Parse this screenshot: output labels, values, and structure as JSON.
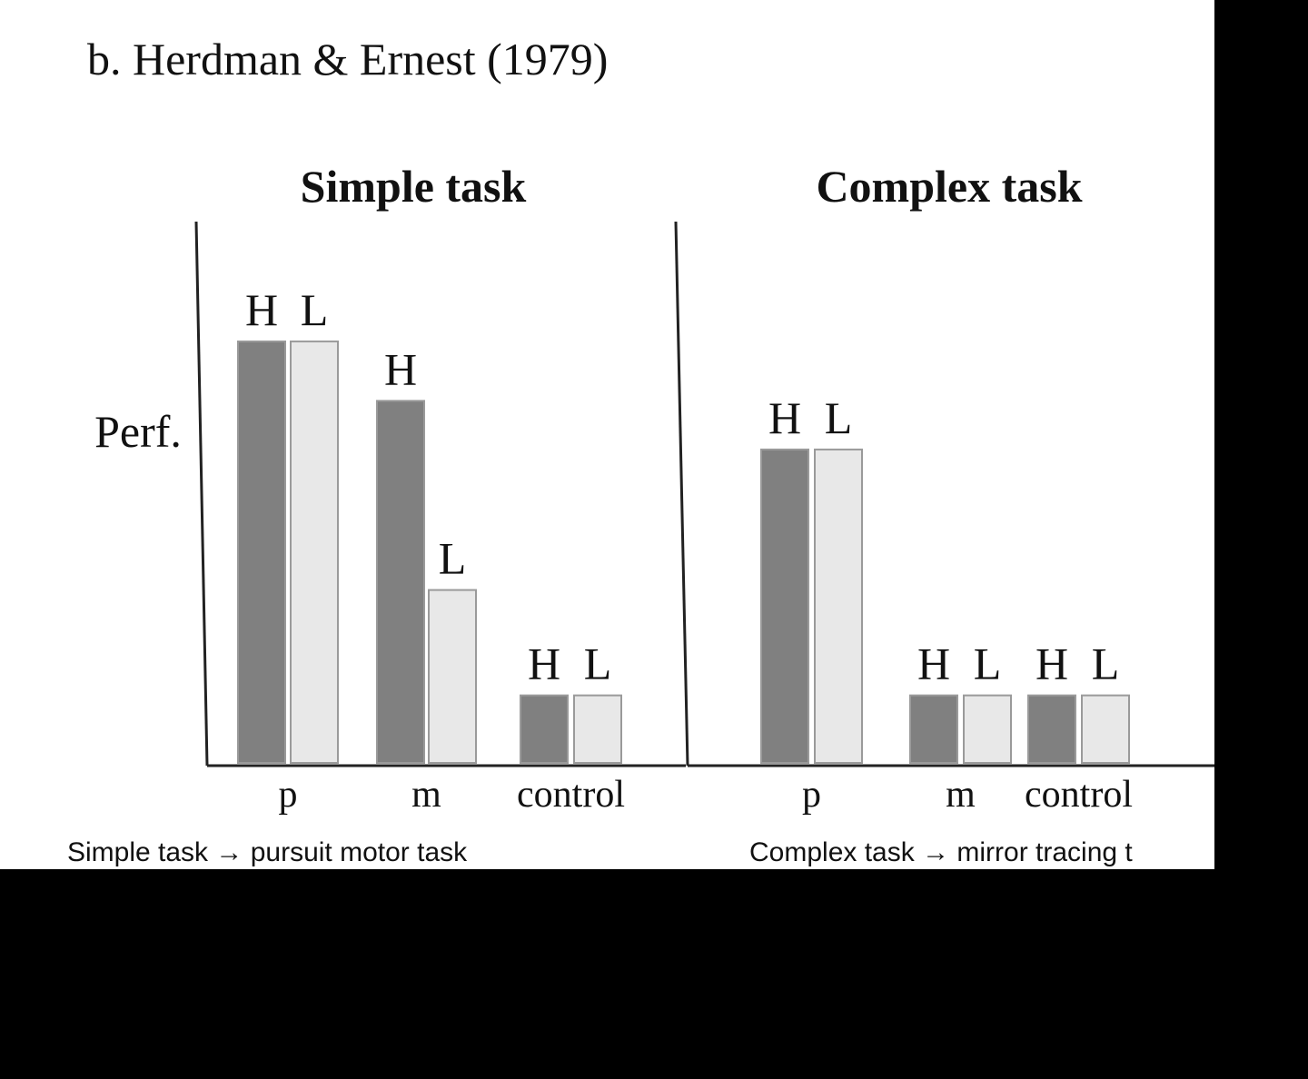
{
  "title": "b. Herdman & Ernest (1979)",
  "captions": {
    "left": "Simple task → pursuit motor task",
    "right": "Complex task → mirror tracing t"
  },
  "colors": {
    "H": "#808080",
    "L": "#e8e8e8",
    "axis": "#222222",
    "bar_stroke": "#9a9a9a"
  },
  "chart_data": [
    {
      "type": "bar",
      "title": "Simple task",
      "ylabel": "Perf.",
      "categories": [
        "p",
        "m",
        "control"
      ],
      "series": [
        {
          "name": "H",
          "values": [
            78,
            67,
            12.5
          ]
        },
        {
          "name": "L",
          "values": [
            78,
            32,
            12.5
          ]
        }
      ],
      "ylim": [
        0,
        100
      ],
      "grid": false,
      "legend": "none"
    },
    {
      "type": "bar",
      "title": "Complex task",
      "ylabel": "",
      "categories": [
        "p",
        "m",
        "control"
      ],
      "series": [
        {
          "name": "H",
          "values": [
            58,
            12.5,
            12.5
          ]
        },
        {
          "name": "L",
          "values": [
            58,
            12.5,
            12.5
          ]
        }
      ],
      "ylim": [
        0,
        100
      ],
      "grid": false,
      "legend": "none"
    }
  ]
}
